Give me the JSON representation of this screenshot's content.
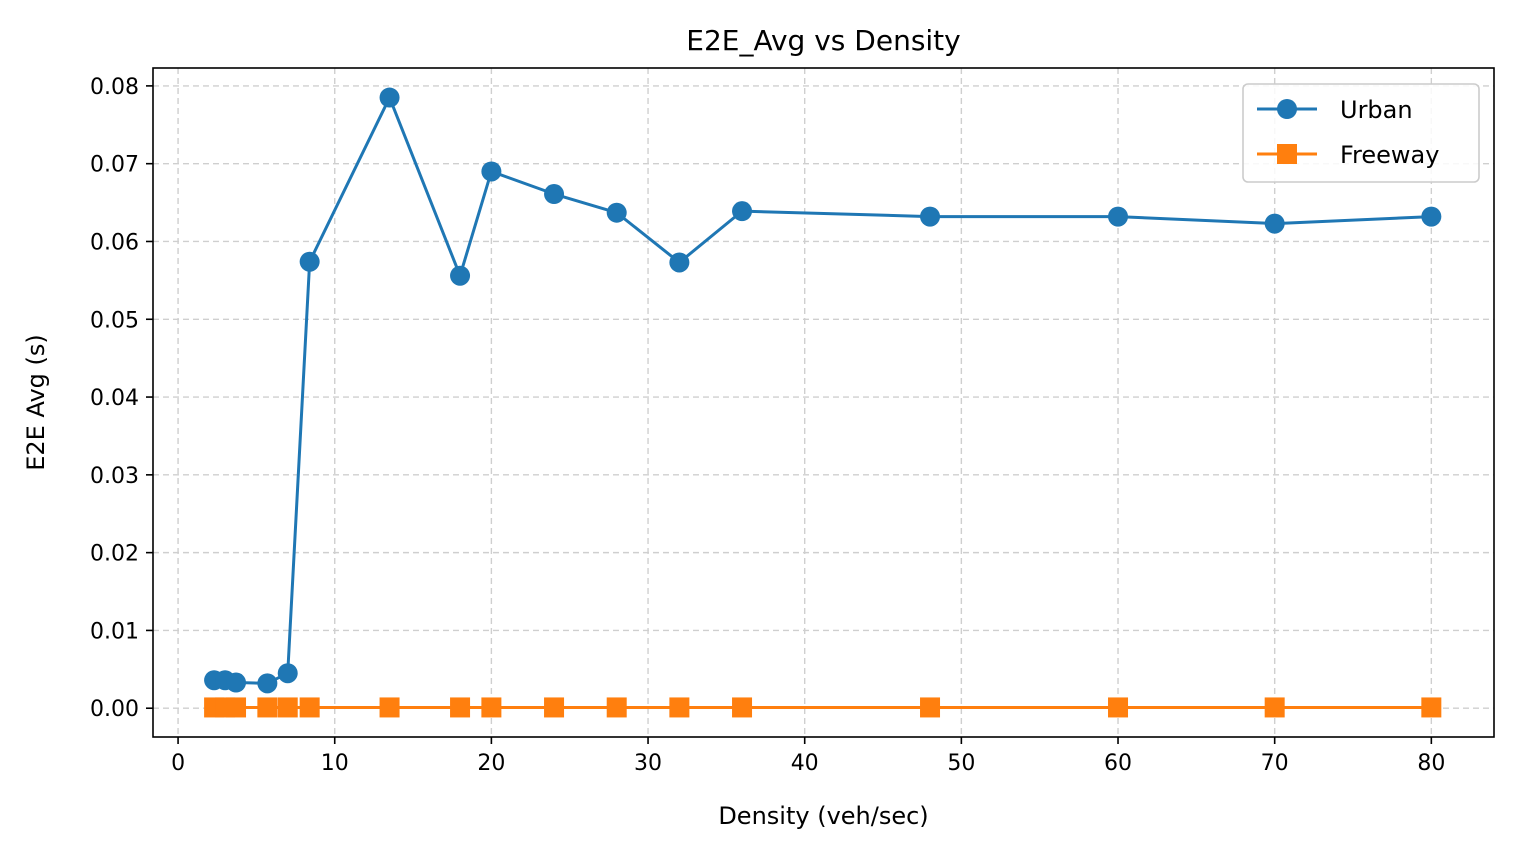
{
  "chart_data": {
    "type": "line",
    "title": "E2E_Avg vs Density",
    "xlabel": "Density (veh/sec)",
    "ylabel": "E2E Avg (s)",
    "xlim": [
      -1.6,
      84
    ],
    "ylim": [
      -0.0037,
      0.0823
    ],
    "xticks": [
      0,
      10,
      20,
      30,
      40,
      50,
      60,
      70,
      80
    ],
    "yticks": [
      0.0,
      0.01,
      0.02,
      0.03,
      0.04,
      0.05,
      0.06,
      0.07,
      0.08
    ],
    "xtick_labels": [
      "0",
      "10",
      "20",
      "30",
      "40",
      "50",
      "60",
      "70",
      "80"
    ],
    "ytick_labels": [
      "0.00",
      "0.01",
      "0.02",
      "0.03",
      "0.04",
      "0.05",
      "0.06",
      "0.07",
      "0.08"
    ],
    "grid": true,
    "legend_position": "top-right",
    "series": [
      {
        "name": "Urban",
        "color": "#1f77b4",
        "marker": "circle",
        "x": [
          2.3,
          3.0,
          3.7,
          5.7,
          7.0,
          8.4,
          13.5,
          18.0,
          20.0,
          24.0,
          28.0,
          32.0,
          36.0,
          48.0,
          60.0,
          70.0,
          80.0
        ],
        "y": [
          0.0036,
          0.0036,
          0.0033,
          0.0032,
          0.0045,
          0.0574,
          0.0785,
          0.0556,
          0.069,
          0.0661,
          0.0637,
          0.0573,
          0.0639,
          0.0632,
          0.0632,
          0.0623,
          0.0632
        ]
      },
      {
        "name": "Freeway",
        "color": "#ff7f0e",
        "marker": "square",
        "x": [
          2.3,
          3.0,
          3.7,
          5.7,
          7.0,
          8.4,
          13.5,
          18.0,
          20.0,
          24.0,
          28.0,
          32.0,
          36.0,
          48.0,
          60.0,
          70.0,
          80.0
        ],
        "y": [
          0.0001,
          0.0001,
          0.0001,
          0.0001,
          0.0001,
          0.0001,
          0.0001,
          0.0001,
          0.0001,
          0.0001,
          0.0001,
          0.0001,
          0.0001,
          0.0001,
          0.0001,
          0.0001,
          0.0001
        ]
      }
    ]
  }
}
